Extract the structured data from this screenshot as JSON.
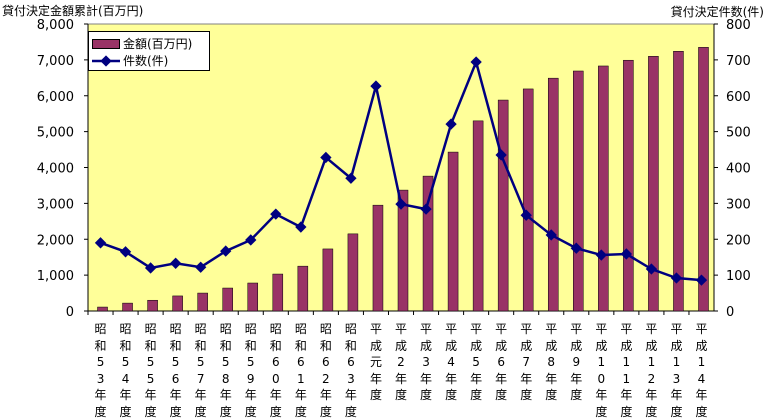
{
  "chart_data": {
    "type": "bar+line",
    "left_axis_title": "貸付決定金額累計(百万円)",
    "right_axis_title": "貸付決定件数(件)",
    "categories": [
      "昭和53年度",
      "昭和54年度",
      "昭和55年度",
      "昭和56年度",
      "昭和57年度",
      "昭和58年度",
      "昭和59年度",
      "昭和60年度",
      "昭和61年度",
      "昭和62年度",
      "昭和63年度",
      "平成元年度",
      "平成2年度",
      "平成3年度",
      "平成4年度",
      "平成5年度",
      "平成6年度",
      "平成7年度",
      "平成8年度",
      "平成9年度",
      "平成10年度",
      "平成11年度",
      "平成12年度",
      "平成13年度",
      "平成14年度"
    ],
    "series": [
      {
        "name": "金額(百万円)",
        "type": "bar",
        "axis": "left",
        "color": "#993366",
        "values": [
          110,
          220,
          300,
          420,
          500,
          640,
          780,
          1030,
          1250,
          1730,
          2150,
          2950,
          3370,
          3760,
          4430,
          5300,
          5880,
          6190,
          6490,
          6690,
          6830,
          6990,
          7100,
          7240,
          7350
        ]
      },
      {
        "name": "件数(件)",
        "type": "line",
        "axis": "right",
        "color": "#000080",
        "values": [
          190,
          165,
          120,
          133,
          122,
          167,
          198,
          270,
          234,
          428,
          370,
          627,
          298,
          284,
          521,
          694,
          435,
          267,
          212,
          175,
          156,
          159,
          117,
          92,
          86
        ]
      }
    ],
    "left_ylim": [
      0,
      8000
    ],
    "left_ticks": [
      "0",
      "1,000",
      "2,000",
      "3,000",
      "4,000",
      "5,000",
      "6,000",
      "7,000",
      "8,000"
    ],
    "right_ylim": [
      0,
      800
    ],
    "right_ticks": [
      "0",
      "100",
      "200",
      "300",
      "400",
      "500",
      "600",
      "700",
      "800"
    ],
    "background": "#FFFF99",
    "legend_position": "top-left"
  }
}
